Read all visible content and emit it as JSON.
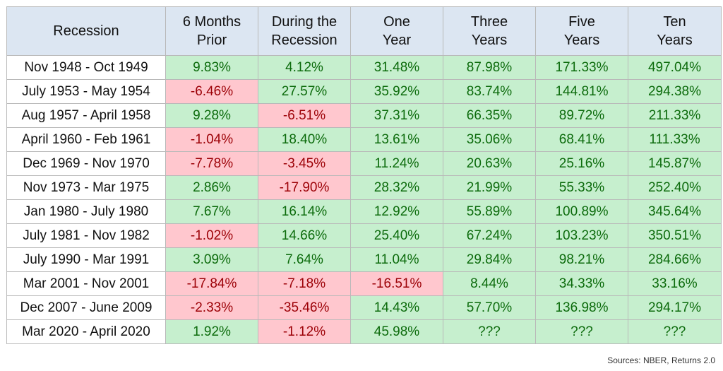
{
  "chart_data": {
    "type": "table",
    "columns": [
      [
        "Recession"
      ],
      [
        "6 Months",
        "Prior"
      ],
      [
        "During the",
        "Recession"
      ],
      [
        "One",
        "Year"
      ],
      [
        "Three",
        "Years"
      ],
      [
        "Five",
        "Years"
      ],
      [
        "Ten",
        "Years"
      ]
    ],
    "rows": [
      {
        "label": "Nov 1948 - Oct 1949",
        "values": [
          "9.83%",
          "4.12%",
          "31.48%",
          "87.98%",
          "171.33%",
          "497.04%"
        ]
      },
      {
        "label": "July 1953 - May 1954",
        "values": [
          "-6.46%",
          "27.57%",
          "35.92%",
          "83.74%",
          "144.81%",
          "294.38%"
        ]
      },
      {
        "label": "Aug 1957 - April 1958",
        "values": [
          "9.28%",
          "-6.51%",
          "37.31%",
          "66.35%",
          "89.72%",
          "211.33%"
        ]
      },
      {
        "label": "April 1960 - Feb 1961",
        "values": [
          "-1.04%",
          "18.40%",
          "13.61%",
          "35.06%",
          "68.41%",
          "111.33%"
        ]
      },
      {
        "label": "Dec 1969 - Nov 1970",
        "values": [
          "-7.78%",
          "-3.45%",
          "11.24%",
          "20.63%",
          "25.16%",
          "145.87%"
        ]
      },
      {
        "label": "Nov 1973 - Mar 1975",
        "values": [
          "2.86%",
          "-17.90%",
          "28.32%",
          "21.99%",
          "55.33%",
          "252.40%"
        ]
      },
      {
        "label": "Jan 1980 - July 1980",
        "values": [
          "7.67%",
          "16.14%",
          "12.92%",
          "55.89%",
          "100.89%",
          "345.64%"
        ]
      },
      {
        "label": "July 1981 - Nov 1982",
        "values": [
          "-1.02%",
          "14.66%",
          "25.40%",
          "67.24%",
          "103.23%",
          "350.51%"
        ]
      },
      {
        "label": "July 1990 - Mar 1991",
        "values": [
          "3.09%",
          "7.64%",
          "11.04%",
          "29.84%",
          "98.21%",
          "284.66%"
        ]
      },
      {
        "label": "Mar 2001 - Nov 2001",
        "values": [
          "-17.84%",
          "-7.18%",
          "-16.51%",
          "8.44%",
          "34.33%",
          "33.16%"
        ]
      },
      {
        "label": "Dec 2007 - June 2009",
        "values": [
          "-2.33%",
          "-35.46%",
          "14.43%",
          "57.70%",
          "136.98%",
          "294.17%"
        ]
      },
      {
        "label": "Mar 2020 - April 2020",
        "values": [
          "1.92%",
          "-1.12%",
          "45.98%",
          "???",
          "???",
          "???"
        ]
      }
    ],
    "colors": {
      "positive_fill": "#c6efce",
      "positive_text": "#0c6b0c",
      "negative_fill": "#ffc7ce",
      "negative_text": "#9c0006",
      "header_fill": "#dce6f2"
    }
  },
  "source": "Sources: NBER, Returns 2.0"
}
